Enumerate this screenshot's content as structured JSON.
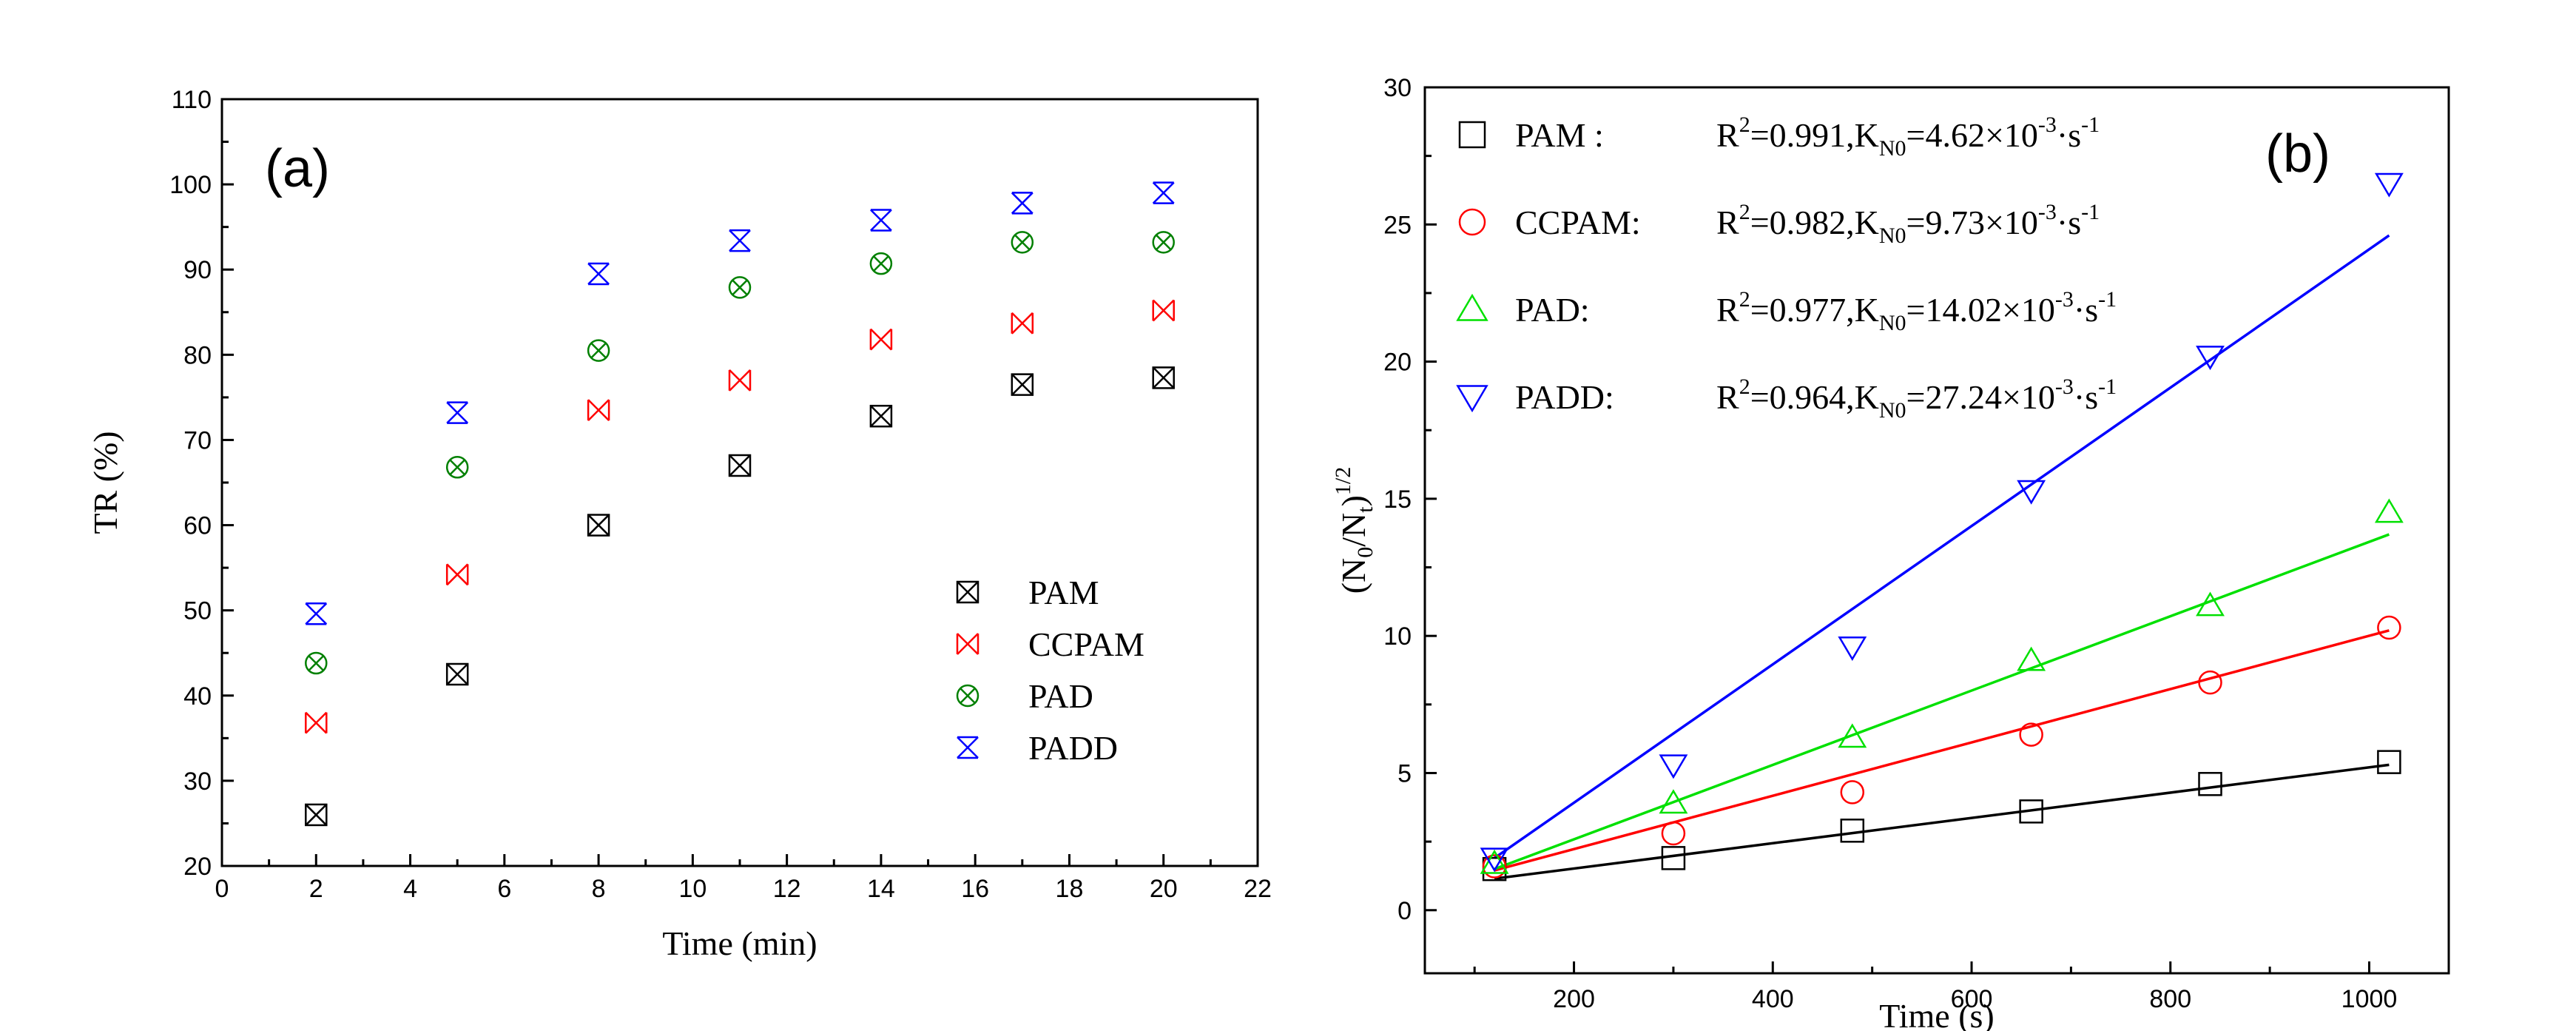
{
  "chart_data": [
    {
      "type": "scatter",
      "panel_label": "(a)",
      "xlabel": "Time (min)",
      "ylabel": "TR (%)",
      "xlim": [
        0,
        22
      ],
      "ylim": [
        20,
        110
      ],
      "xticks": [
        0,
        2,
        4,
        6,
        8,
        10,
        12,
        14,
        16,
        18,
        20,
        22
      ],
      "yticks": [
        20,
        30,
        40,
        50,
        60,
        70,
        80,
        90,
        100,
        110
      ],
      "legend_position": "bottom-right",
      "x": [
        2,
        5,
        8,
        11,
        14,
        17,
        20
      ],
      "series": [
        {
          "name": "PAM",
          "color": "#000000",
          "marker": "boxed-x",
          "values": [
            26,
            42.5,
            60,
            67,
            72.8,
            76.5,
            77.3
          ]
        },
        {
          "name": "CCPAM",
          "color": "#ff0000",
          "marker": "bowtie-x",
          "values": [
            36.8,
            54.2,
            73.5,
            77,
            81.8,
            83.7,
            85.2
          ]
        },
        {
          "name": "PAD",
          "color": "#008000",
          "marker": "circled-x",
          "values": [
            43.8,
            66.8,
            80.5,
            87.9,
            90.7,
            93.2,
            93.2
          ]
        },
        {
          "name": "PADD",
          "color": "#0000ff",
          "marker": "hourglass-x",
          "values": [
            49.6,
            73.2,
            89.5,
            93.4,
            95.8,
            97.8,
            99
          ]
        }
      ]
    },
    {
      "type": "scatter",
      "panel_label": "(b)",
      "xlabel": "Time (s)",
      "ylabel": "(N0/Nt)1/2",
      "ylabel_parts": {
        "open": "(N",
        "sub1": "0",
        "mid": "/N",
        "sub2": "t",
        "close": ")",
        "sup": "1/2"
      },
      "xlim": [
        50,
        1080
      ],
      "ylim": [
        -2.3,
        30
      ],
      "xticks": [
        200,
        400,
        600,
        800,
        1000
      ],
      "yticks": [
        0,
        5,
        10,
        15,
        20,
        25,
        30
      ],
      "legend_position": "top-left",
      "x": [
        120,
        300,
        480,
        660,
        840,
        1020
      ],
      "series": [
        {
          "name": "PAM",
          "legend_label": "PAM :",
          "color": "#000000",
          "marker": "square",
          "values": [
            1.5,
            1.9,
            2.9,
            3.6,
            4.6,
            5.4
          ],
          "fit": {
            "x": [
              120,
              1020
            ],
            "y": [
              1.15,
              5.3
            ]
          },
          "stats": {
            "r2_label": "R",
            "r2_sup": "2",
            "r2_value": "=0.991,K",
            "k_sub": "N0",
            "k_value": "=4.62×10",
            "exp": "-3",
            "unit": "·s",
            "unit_exp": "-1"
          }
        },
        {
          "name": "CCPAM",
          "legend_label": "CCPAM:",
          "color": "#ff0000",
          "marker": "circle",
          "values": [
            1.6,
            2.8,
            4.3,
            6.4,
            8.3,
            10.3
          ],
          "fit": {
            "x": [
              120,
              1020
            ],
            "y": [
              1.45,
              10.2
            ]
          },
          "stats": {
            "r2_label": "R",
            "r2_sup": "2",
            "r2_value": "=0.982,K",
            "k_sub": "N0",
            "k_value": "=9.73×10",
            "exp": "-3",
            "unit": "·s",
            "unit_exp": "-1"
          }
        },
        {
          "name": "PAD",
          "legend_label": "PAD:",
          "color": "#00e000",
          "marker": "triangle-up",
          "values": [
            1.7,
            3.9,
            6.3,
            9.1,
            11.1,
            14.5
          ],
          "fit": {
            "x": [
              120,
              1020
            ],
            "y": [
              1.5,
              13.7
            ]
          },
          "stats": {
            "r2_label": "R",
            "r2_sup": "2",
            "r2_value": "=0.977,K",
            "k_sub": "N0",
            "k_value": "=14.02×10",
            "exp": "-3",
            "unit": "·s",
            "unit_exp": "-1"
          }
        },
        {
          "name": "PADD",
          "legend_label": "PADD:",
          "color": "#0000ff",
          "marker": "triangle-down",
          "values": [
            1.9,
            5.3,
            9.6,
            15.3,
            20.2,
            26.5
          ],
          "fit": {
            "x": [
              120,
              1020
            ],
            "y": [
              1.9,
              24.6
            ]
          },
          "stats": {
            "r2_label": "R",
            "r2_sup": "2",
            "r2_value": "=0.964,K",
            "k_sub": "N0",
            "k_value": "=27.24×10",
            "exp": "-3",
            "unit": "·s",
            "unit_exp": "-1"
          }
        }
      ]
    }
  ]
}
